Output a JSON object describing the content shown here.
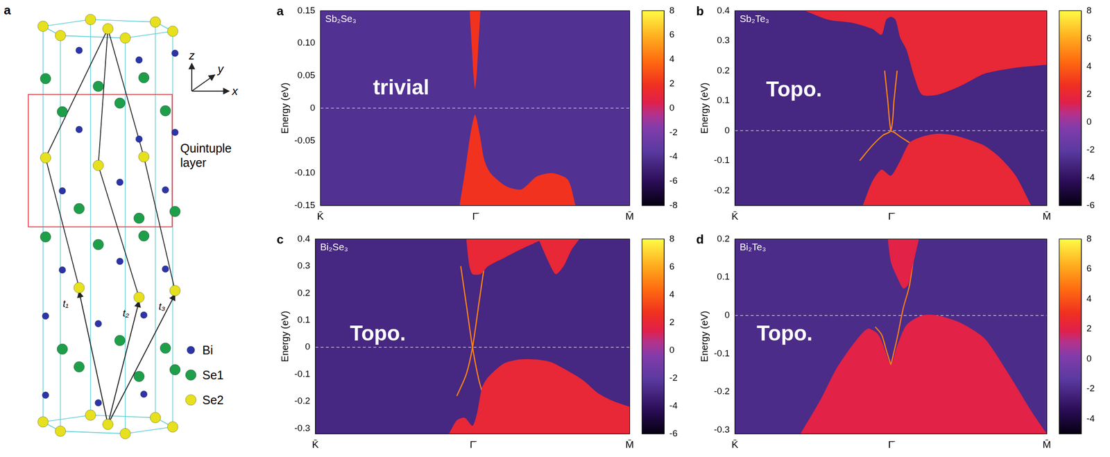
{
  "structure": {
    "panel_label": "a",
    "axis_labels": [
      "z",
      "y",
      "x"
    ],
    "box_label": "Quintuple layer",
    "vector_labels": [
      "t₁",
      "t₂",
      "t₃"
    ],
    "legend": [
      {
        "name": "Bi",
        "color": "#2b35a8"
      },
      {
        "name": "Se1",
        "color": "#1f9e4a"
      },
      {
        "name": "Se2",
        "color": "#e6e01e"
      }
    ]
  },
  "chart_data": [
    {
      "type": "heatmap",
      "panel_label": "a",
      "title": "Sb₂Se₃",
      "annotation": "trivial",
      "ylabel": "Energy (eV)",
      "xlim": [
        -1,
        1
      ],
      "xticks": [
        {
          "value": -1,
          "label": "K̄"
        },
        {
          "value": 0,
          "label": "Γ̄"
        },
        {
          "value": 1,
          "label": "M̄"
        }
      ],
      "ylim": [
        -0.15,
        0.15
      ],
      "yticks": [
        -0.15,
        {
          "value": -0.1,
          "label": "-0.10"
        },
        -0.05,
        0,
        0.05,
        {
          "value": 0.1,
          "label": "0.10"
        },
        0.15
      ],
      "colorbar": {
        "range": [
          -8,
          8
        ],
        "ticks": [
          -8,
          -6,
          -4,
          -2,
          0,
          2,
          4,
          6,
          8
        ]
      },
      "background_value": -4,
      "reference_line": {
        "y": 0,
        "line_style": "dashed"
      },
      "bands": [
        {
          "x": [
            -0.035,
            -0.02,
            -0.01,
            0,
            0.01,
            0.02,
            0.035
          ],
          "lower": [
            0.15,
            0.09,
            0.05,
            0.03,
            0.05,
            0.09,
            0.15
          ],
          "upper": [
            0.15,
            0.15,
            0.15,
            0.15,
            0.15,
            0.15,
            0.15
          ],
          "color_value": 2
        },
        {
          "x": [
            -0.1,
            -0.06,
            -0.03,
            0,
            0.03,
            0.06,
            0.1,
            0.2,
            0.3,
            0.4,
            0.5,
            0.6,
            0.65
          ],
          "lower": [
            -0.15,
            -0.15,
            -0.15,
            -0.15,
            -0.15,
            -0.15,
            -0.15,
            -0.15,
            -0.15,
            -0.15,
            -0.15,
            -0.15,
            -0.15
          ],
          "upper": [
            -0.15,
            -0.09,
            -0.04,
            -0.01,
            -0.04,
            -0.08,
            -0.1,
            -0.12,
            -0.125,
            -0.105,
            -0.1,
            -0.11,
            -0.15
          ],
          "color_value": 2
        }
      ],
      "surface_states": []
    },
    {
      "type": "heatmap",
      "panel_label": "b",
      "title": "Sb₂Te₃",
      "annotation": "Topo.",
      "ylabel": "Energy (eV)",
      "xlim": [
        -1,
        1
      ],
      "xticks": [
        {
          "value": -1,
          "label": "K̄"
        },
        {
          "value": 0,
          "label": "Γ̄"
        },
        {
          "value": 1,
          "label": "M̄"
        }
      ],
      "ylim": [
        -0.25,
        0.4
      ],
      "yticks": [
        -0.2,
        -0.1,
        0,
        0.1,
        0.2,
        0.3,
        0.4
      ],
      "colorbar": {
        "range": [
          -6,
          8
        ],
        "ticks": [
          -6,
          -4,
          -2,
          0,
          2,
          4,
          6,
          8
        ]
      },
      "background_value": -3,
      "reference_line": {
        "y": 0,
        "line_style": "dashed"
      },
      "bands": [
        {
          "x": [
            -0.55,
            -0.4,
            -0.25,
            -0.12,
            -0.06,
            -0.03,
            0,
            0.03,
            0.06,
            0.1,
            0.15,
            0.2,
            0.3,
            0.45,
            0.6,
            0.8,
            1
          ],
          "lower": [
            0.4,
            0.37,
            0.36,
            0.34,
            0.32,
            0.37,
            0.38,
            0.37,
            0.31,
            0.27,
            0.18,
            0.12,
            0.12,
            0.15,
            0.19,
            0.21,
            0.22
          ],
          "upper": [
            0.4,
            0.4,
            0.4,
            0.4,
            0.4,
            0.4,
            0.4,
            0.4,
            0.4,
            0.4,
            0.4,
            0.4,
            0.4,
            0.4,
            0.4,
            0.4,
            0.4
          ],
          "color_value": 2
        },
        {
          "x": [
            -0.18,
            -0.12,
            -0.06,
            0,
            0.06,
            0.12,
            0.2,
            0.3,
            0.4,
            0.5,
            0.6,
            0.7,
            0.8,
            0.9
          ],
          "lower": [
            -0.25,
            -0.25,
            -0.25,
            -0.25,
            -0.25,
            -0.25,
            -0.25,
            -0.25,
            -0.25,
            -0.25,
            -0.25,
            -0.25,
            -0.25,
            -0.25
          ],
          "upper": [
            -0.25,
            -0.17,
            -0.13,
            -0.15,
            -0.1,
            -0.04,
            -0.02,
            -0.01,
            -0.015,
            -0.03,
            -0.05,
            -0.09,
            -0.15,
            -0.25
          ],
          "color_value": 2
        }
      ],
      "surface_states": [
        {
          "x": [
            -0.2,
            -0.12,
            -0.05,
            0,
            0.02,
            0.04
          ],
          "values": [
            -0.1,
            -0.05,
            -0.015,
            0,
            0.1,
            0.2
          ],
          "color_value": 5
        },
        {
          "x": [
            0.12,
            0.06,
            0.02,
            0,
            -0.02,
            -0.04
          ],
          "values": [
            -0.04,
            -0.02,
            -0.005,
            0,
            0.1,
            0.2
          ],
          "color_value": 5
        }
      ]
    },
    {
      "type": "heatmap",
      "panel_label": "c",
      "title": "Bi₂Se₃",
      "annotation": "Topo.",
      "ylabel": "Energy (eV)",
      "xlim": [
        -1,
        1
      ],
      "xticks": [
        {
          "value": -1,
          "label": "K̄"
        },
        {
          "value": 0,
          "label": "Γ̄"
        },
        {
          "value": 1,
          "label": "M̄"
        }
      ],
      "ylim": [
        -0.32,
        0.4
      ],
      "yticks": [
        -0.3,
        -0.2,
        -0.1,
        0,
        0.1,
        0.2,
        0.3,
        0.4
      ],
      "colorbar": {
        "range": [
          -6,
          8
        ],
        "ticks": [
          -6,
          -4,
          -2,
          0,
          2,
          4,
          6,
          8
        ]
      },
      "background_value": -3,
      "reference_line": {
        "y": 0,
        "line_style": "dashed"
      },
      "bands": [
        {
          "x": [
            -0.04,
            -0.02,
            0,
            0.05,
            0.1,
            0.2,
            0.3,
            0.45
          ],
          "lower": [
            0.4,
            0.3,
            0.27,
            0.27,
            0.3,
            0.33,
            0.36,
            0.4
          ],
          "upper": [
            0.4,
            0.4,
            0.4,
            0.4,
            0.4,
            0.4,
            0.4,
            0.4
          ],
          "color_value": 2
        },
        {
          "x": [
            0.42,
            0.48,
            0.53,
            0.58,
            0.63,
            0.68
          ],
          "lower": [
            0.4,
            0.32,
            0.27,
            0.3,
            0.36,
            0.4
          ],
          "upper": [
            0.4,
            0.4,
            0.4,
            0.4,
            0.4,
            0.4
          ],
          "color_value": 2
        },
        {
          "x": [
            -0.15,
            -0.1,
            -0.05,
            0,
            0.03,
            0.06,
            0.1,
            0.2,
            0.3,
            0.4,
            0.5,
            0.6,
            0.7,
            0.8,
            0.9,
            1
          ],
          "lower": [
            -0.32,
            -0.32,
            -0.32,
            -0.32,
            -0.32,
            -0.32,
            -0.32,
            -0.32,
            -0.32,
            -0.32,
            -0.32,
            -0.32,
            -0.32,
            -0.32,
            -0.32,
            -0.32
          ],
          "upper": [
            -0.32,
            -0.27,
            -0.26,
            -0.29,
            -0.24,
            -0.15,
            -0.11,
            -0.06,
            -0.045,
            -0.045,
            -0.055,
            -0.085,
            -0.12,
            -0.17,
            -0.2,
            -0.22
          ],
          "color_value": 2
        }
      ],
      "surface_states": [
        {
          "x": [
            -0.075,
            -0.04,
            0,
            0.04,
            0.08
          ],
          "values": [
            0.3,
            0.16,
            0,
            -0.12,
            -0.2
          ],
          "color_value": 5
        },
        {
          "x": [
            0.075,
            0.04,
            0,
            -0.04,
            -0.1
          ],
          "values": [
            0.3,
            0.16,
            0,
            -0.1,
            -0.18
          ],
          "color_value": 5
        }
      ]
    },
    {
      "type": "heatmap",
      "panel_label": "d",
      "title": "Bi₂Te₃",
      "annotation": "Topo.",
      "ylabel": "Energy (eV)",
      "xlim": [
        -1,
        1
      ],
      "xticks": [
        {
          "value": -1,
          "label": "K̄"
        },
        {
          "value": 0,
          "label": "Γ̄"
        },
        {
          "value": 1,
          "label": "M̄"
        }
      ],
      "ylim": [
        -0.31,
        0.2
      ],
      "yticks": [
        -0.3,
        -0.2,
        -0.1,
        0,
        0.1,
        0.2
      ],
      "colorbar": {
        "range": [
          -5,
          8
        ],
        "ticks": [
          -4,
          -2,
          0,
          2,
          4,
          6,
          8
        ]
      },
      "background_value": -2,
      "reference_line": {
        "y": 0,
        "line_style": "dashed"
      },
      "bands": [
        {
          "x": [
            -0.02,
            0,
            0.04,
            0.08,
            0.11,
            0.14,
            0.18
          ],
          "lower": [
            0.2,
            0.14,
            0.1,
            0.07,
            0.08,
            0.13,
            0.2
          ],
          "upper": [
            0.2,
            0.2,
            0.2,
            0.2,
            0.2,
            0.2,
            0.2
          ],
          "color_value": 2
        },
        {
          "x": [
            -0.58,
            -0.45,
            -0.35,
            -0.25,
            -0.15,
            -0.08,
            -0.03,
            0,
            0.04,
            0.1,
            0.2,
            0.3,
            0.45,
            0.6,
            0.75,
            0.9,
            1
          ],
          "lower": [
            -0.31,
            -0.31,
            -0.31,
            -0.31,
            -0.31,
            -0.31,
            -0.31,
            -0.31,
            -0.31,
            -0.31,
            -0.31,
            -0.31,
            -0.31,
            -0.31,
            -0.31,
            -0.31,
            -0.31
          ],
          "upper": [
            -0.31,
            -0.22,
            -0.14,
            -0.08,
            -0.035,
            -0.05,
            -0.1,
            -0.13,
            -0.08,
            -0.025,
            0,
            0,
            -0.02,
            -0.06,
            -0.15,
            -0.25,
            -0.31
          ],
          "color_value": 2
        }
      ],
      "surface_states": [
        {
          "x": [
            0,
            0.04,
            0.08,
            0.12,
            0.16
          ],
          "values": [
            -0.13,
            -0.06,
            0.02,
            0.08,
            0.2
          ],
          "color_value": 5
        },
        {
          "x": [
            0,
            -0.03,
            -0.06,
            -0.1
          ],
          "values": [
            -0.13,
            -0.09,
            -0.05,
            -0.03
          ],
          "color_value": 5
        }
      ]
    }
  ]
}
